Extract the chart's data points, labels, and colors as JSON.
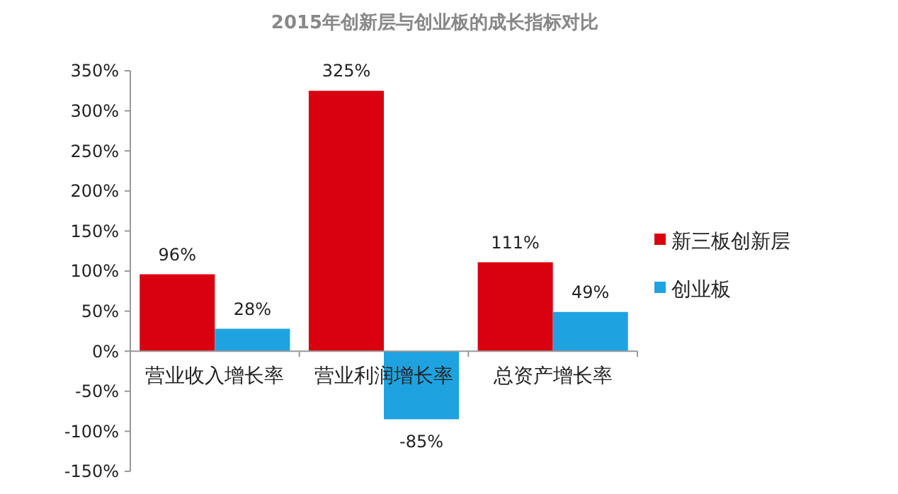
{
  "chart_data": {
    "type": "bar",
    "title": "2015年创新层与创业板的成长指标对比",
    "categories": [
      "营业收入增长率",
      "营业利润增长率",
      "总资产增长率"
    ],
    "series": [
      {
        "name": "新三板创新层",
        "color": "#d9000f",
        "values": [
          96,
          325,
          111
        ],
        "value_labels": [
          "96%",
          "325%",
          "111%"
        ]
      },
      {
        "name": "创业板",
        "color": "#1fa3e0",
        "values": [
          28,
          -85,
          49
        ],
        "value_labels": [
          "28%",
          "-85%",
          "49%"
        ]
      }
    ],
    "ylim": [
      -150,
      350
    ],
    "yticks": [
      {
        "value": -150,
        "label": "-150%"
      },
      {
        "value": -100,
        "label": "-100%"
      },
      {
        "value": -50,
        "label": "-50%"
      },
      {
        "value": 0,
        "label": "0%"
      },
      {
        "value": 50,
        "label": "50%"
      },
      {
        "value": 100,
        "label": "100%"
      },
      {
        "value": 150,
        "label": "150%"
      },
      {
        "value": 200,
        "label": "200%"
      },
      {
        "value": 250,
        "label": "250%"
      },
      {
        "value": 300,
        "label": "300%"
      },
      {
        "value": 350,
        "label": "350%"
      }
    ],
    "grid": false,
    "legend": "right"
  }
}
